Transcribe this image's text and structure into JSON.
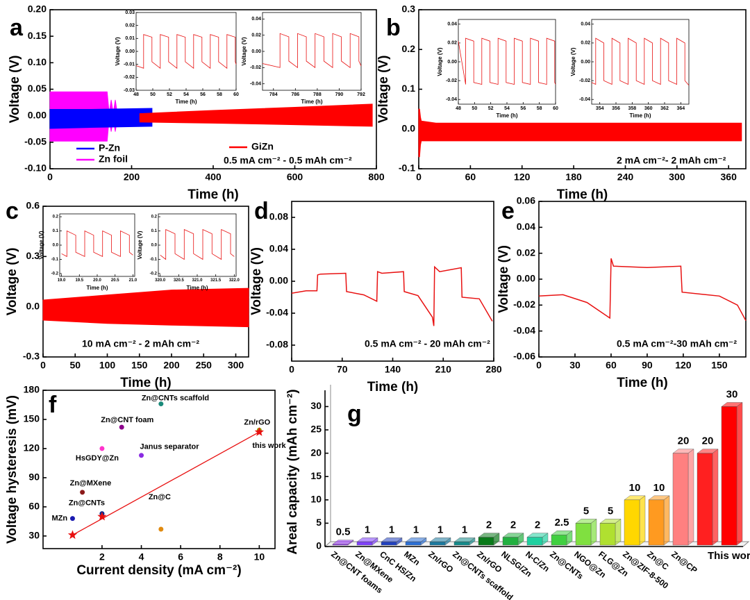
{
  "chart_data": [
    {
      "type": "line",
      "label": "a",
      "xlabel": "Time (h)",
      "ylabel": "Voltage (V)",
      "note": "0.5 mA cm⁻² - 0.5 mAh cm⁻²",
      "legend": true,
      "xlim": [
        0,
        800
      ],
      "xticks": [
        0,
        200,
        400,
        600,
        800
      ],
      "ylim": [
        -0.1,
        0.2
      ],
      "yticks": [
        {
          "value": -0.1,
          "label": "-0.10"
        },
        {
          "value": -0.05,
          "label": "-0.05"
        },
        {
          "value": 0,
          "label": "0.00"
        },
        {
          "value": 0.05,
          "label": "0.05"
        },
        {
          "value": 0.1,
          "label": "0.10"
        },
        {
          "value": 0.15,
          "label": "0.15"
        },
        {
          "value": 0.2,
          "label": "0.20"
        }
      ],
      "series": [
        {
          "name": "Zn foil",
          "color": "#ff00ff",
          "x": [
            0,
            140,
            145,
            150,
            155,
            160,
            165
          ],
          "high": [
            0.045,
            0.045,
            0.005,
            0.03,
            0.005,
            0.03,
            0.005
          ],
          "low": [
            -0.048,
            -0.048,
            -0.005,
            -0.03,
            -0.005,
            -0.03,
            -0.005
          ]
        },
        {
          "name": "P-Zn",
          "color": "#0000ff",
          "x": [
            0,
            100,
            250
          ],
          "high": [
            0.012,
            0.012,
            0.014
          ],
          "low": [
            -0.024,
            -0.022,
            -0.02
          ]
        },
        {
          "name": "GiZn",
          "color": "#ff0000",
          "x": [
            220,
            400,
            600,
            790
          ],
          "high": [
            0.004,
            0.01,
            0.016,
            0.022
          ],
          "low": [
            -0.012,
            -0.014,
            -0.017,
            -0.02
          ]
        }
      ]
    },
    {
      "type": "line",
      "xlabel": "Time (h)",
      "ylabel": "Voltage (V)",
      "xlim": [
        48,
        60
      ],
      "xticks": [
        48,
        50,
        52,
        54,
        56,
        58,
        60
      ],
      "ylim": [
        -0.03,
        0.03
      ],
      "yticks": [
        -0.03,
        -0.02,
        -0.01,
        {
          "value": 0,
          "label": "0.00"
        },
        0.01,
        0.02,
        0.03
      ],
      "series": [
        {
          "color": "#e81010",
          "x": [
            48,
            48.9,
            48.9,
            49.9,
            49.9,
            50.9,
            50.9,
            51.9,
            51.9,
            52.9,
            52.9,
            53.9,
            53.9,
            54.9,
            54.9,
            55.9,
            55.9,
            56.9,
            56.9,
            57.9,
            57.9,
            58.9,
            58.9,
            59.9,
            59.9,
            60
          ],
          "values": [
            -0.011,
            -0.013,
            0.013,
            0.011,
            -0.008,
            -0.013,
            0.013,
            0.011,
            -0.008,
            -0.013,
            0.013,
            0.011,
            -0.008,
            -0.013,
            0.013,
            0.011,
            -0.008,
            -0.013,
            0.013,
            0.011,
            -0.008,
            -0.013,
            0.013,
            0.011,
            -0.008,
            -0.01
          ]
        }
      ]
    },
    {
      "type": "line",
      "xlabel": "Time (h)",
      "ylabel": "Voltage (V)",
      "xlim": [
        783,
        792
      ],
      "xticks": [
        784,
        786,
        788,
        790,
        792
      ],
      "ylim": [
        -0.048,
        0.048
      ],
      "yticks": [
        -0.04,
        -0.02,
        {
          "value": 0,
          "label": "0.00"
        },
        0.02,
        0.04
      ],
      "series": [
        {
          "color": "#e81010",
          "x": [
            783,
            784.6,
            784.6,
            785.4,
            785.4,
            786.2,
            786.2,
            787,
            787,
            787.8,
            787.8,
            788.6,
            788.6,
            789.4,
            789.4,
            790.2,
            790.2,
            791,
            791,
            791.8,
            791.8,
            792
          ],
          "values": [
            -0.015,
            -0.02,
            0.022,
            0.018,
            -0.012,
            -0.02,
            0.022,
            0.018,
            -0.012,
            -0.02,
            0.022,
            0.018,
            -0.012,
            -0.02,
            0.022,
            0.018,
            -0.012,
            -0.02,
            0.022,
            0.018,
            -0.012,
            -0.018
          ]
        }
      ]
    },
    {
      "type": "line",
      "label": "b",
      "xlabel": "Time (h)",
      "ylabel": "Voltage (V)",
      "note": "2 mA cm⁻²- 2 mAh cm⁻²",
      "xlim": [
        0,
        380
      ],
      "xticks": [
        0,
        60,
        120,
        180,
        240,
        300,
        360
      ],
      "ylim": [
        -0.1,
        0.3
      ],
      "yticks": [
        -0.1,
        {
          "value": 0,
          "label": "0.0"
        },
        0.1,
        0.2,
        0.3
      ],
      "series": [
        {
          "color": "#ff0000",
          "x": [
            0,
            1,
            2,
            3,
            20,
            375
          ],
          "high": [
            0.05,
            0.05,
            0.03,
            0.02,
            0.015,
            0.015
          ],
          "low": [
            -0.07,
            -0.07,
            -0.04,
            -0.03,
            -0.03,
            -0.03
          ]
        }
      ]
    },
    {
      "type": "line",
      "xlabel": "Time (h)",
      "ylabel": "Voltage (V)",
      "xlim": [
        48,
        60
      ],
      "xticks": [
        48,
        50,
        52,
        54,
        56,
        58,
        60
      ],
      "ylim": [
        -0.045,
        0.045
      ],
      "yticks": [
        -0.04,
        -0.02,
        {
          "value": 0,
          "label": "0.00"
        },
        0.02,
        0.04
      ],
      "series": [
        {
          "color": "#e81010",
          "x": [
            48,
            48.9,
            48.9,
            49.9,
            49.9,
            50.9,
            50.9,
            51.9,
            51.9,
            52.9,
            52.9,
            53.9,
            53.9,
            54.9,
            54.9,
            55.9,
            55.9,
            56.9,
            56.9,
            57.9,
            57.9,
            58.9,
            58.9,
            59.9,
            59.9,
            60
          ],
          "values": [
            0.022,
            -0.024,
            0.025,
            0.022,
            -0.022,
            -0.024,
            0.025,
            0.022,
            -0.022,
            -0.024,
            0.025,
            0.022,
            -0.022,
            -0.024,
            0.025,
            0.022,
            -0.022,
            -0.024,
            0.025,
            0.022,
            -0.022,
            -0.024,
            0.025,
            0.022,
            -0.022,
            -0.024
          ]
        }
      ]
    },
    {
      "type": "line",
      "xlabel": "Time (h)",
      "ylabel": "Voltage (V)",
      "xlim": [
        353,
        365
      ],
      "xticks": [
        354,
        356,
        358,
        360,
        362,
        364
      ],
      "ylim": [
        -0.045,
        0.045
      ],
      "yticks": [
        -0.04,
        -0.02,
        {
          "value": 0,
          "label": "0.00"
        },
        0.02,
        0.04
      ],
      "series": [
        {
          "color": "#e81010",
          "x": [
            353,
            353.5,
            353.5,
            354.5,
            354.5,
            355.5,
            355.5,
            356.5,
            356.5,
            357.5,
            357.5,
            358.5,
            358.5,
            359.5,
            359.5,
            360.5,
            360.5,
            361.5,
            361.5,
            362.5,
            362.5,
            363.5,
            363.5,
            364.5,
            364.5,
            365
          ],
          "values": [
            -0.022,
            -0.024,
            0.025,
            0.02,
            -0.02,
            -0.024,
            0.025,
            0.02,
            -0.02,
            -0.024,
            0.025,
            0.02,
            -0.02,
            -0.024,
            0.025,
            0.02,
            -0.02,
            -0.024,
            0.025,
            0.02,
            -0.02,
            -0.024,
            0.025,
            0.02,
            -0.02,
            -0.025
          ]
        }
      ]
    },
    {
      "type": "line",
      "label": "c",
      "xlabel": "Time (h)",
      "ylabel": "Voltage (V)",
      "note": "10 mA cm⁻² - 2 mAh cm⁻²",
      "xlim": [
        0,
        320
      ],
      "xticks": [
        0,
        50,
        100,
        150,
        200,
        250,
        300
      ],
      "ylim": [
        -0.3,
        0.6
      ],
      "yticks": [
        -0.3,
        {
          "value": 0,
          "label": "0.0"
        },
        0.3,
        0.6
      ],
      "series": [
        {
          "color": "#ff0000",
          "x": [
            0,
            100,
            200,
            320
          ],
          "high": [
            0.04,
            0.07,
            0.1,
            0.11
          ],
          "low": [
            -0.08,
            -0.1,
            -0.11,
            -0.12
          ]
        }
      ]
    },
    {
      "type": "line",
      "xlabel": "Time (h)",
      "ylabel": "Voltage (V)",
      "xlim": [
        18.95,
        21.05
      ],
      "xticks": [
        {
          "value": 19,
          "label": "19.0"
        },
        19.5,
        {
          "value": 20,
          "label": "20.0"
        },
        20.5,
        {
          "value": 21,
          "label": "21.0"
        }
      ],
      "ylim": [
        -0.22,
        0.22
      ],
      "yticks": [
        -0.2,
        -0.1,
        {
          "value": 0,
          "label": "0.0"
        },
        0.1,
        0.2
      ],
      "series": [
        {
          "color": "#e81010",
          "x": [
            19,
            19.15,
            19.15,
            19.4,
            19.4,
            19.65,
            19.65,
            19.9,
            19.9,
            20.15,
            20.15,
            20.4,
            20.4,
            20.65,
            20.65,
            20.9,
            20.9,
            21
          ],
          "values": [
            -0.06,
            -0.08,
            0.1,
            0.07,
            -0.05,
            -0.08,
            0.1,
            0.07,
            -0.05,
            -0.08,
            0.1,
            0.07,
            -0.05,
            -0.08,
            0.1,
            0.07,
            -0.05,
            -0.07
          ]
        }
      ]
    },
    {
      "type": "line",
      "xlabel": "Time (h)",
      "ylabel": "Voltage (V)",
      "xlim": [
        319.95,
        322.05
      ],
      "xticks": [
        {
          "value": 320,
          "label": "320.0"
        },
        320.5,
        {
          "value": 321,
          "label": "321.0"
        },
        321.5,
        {
          "value": 322,
          "label": "322.0"
        }
      ],
      "ylim": [
        -0.22,
        0.22
      ],
      "yticks": [
        -0.2,
        -0.1,
        {
          "value": 0,
          "label": "0.0"
        },
        0.1,
        0.2
      ],
      "series": [
        {
          "color": "#e81010",
          "x": [
            320,
            320.15,
            320.15,
            320.4,
            320.4,
            320.65,
            320.65,
            320.9,
            320.9,
            321.15,
            321.15,
            321.4,
            321.4,
            321.65,
            321.65,
            321.9,
            321.9,
            322
          ],
          "values": [
            -0.07,
            -0.1,
            0.11,
            0.08,
            -0.06,
            -0.1,
            0.11,
            0.08,
            -0.06,
            -0.1,
            0.11,
            0.08,
            -0.06,
            -0.1,
            0.11,
            0.08,
            -0.06,
            -0.08
          ]
        }
      ]
    },
    {
      "type": "line",
      "label": "d",
      "xlabel": "Time (h)",
      "ylabel": "Voltage (V)",
      "note": "0.5 mA cm⁻² - 20 mAh cm⁻²",
      "xlim": [
        0,
        280
      ],
      "xticks": [
        0,
        70,
        140,
        210,
        280
      ],
      "ylim": [
        -0.1,
        0.1
      ],
      "yticks": [
        -0.08,
        -0.04,
        {
          "value": 0,
          "label": "0.00"
        },
        0.04,
        0.08
      ],
      "series": [
        {
          "color": "#e81010",
          "x": [
            0,
            20,
            35,
            36,
            40,
            75,
            76,
            100,
            118,
            119,
            125,
            155,
            156,
            175,
            195,
            197,
            198,
            205,
            235,
            236,
            260,
            278
          ],
          "values": [
            -0.015,
            -0.012,
            -0.012,
            0.008,
            0.009,
            0.01,
            -0.013,
            -0.017,
            -0.025,
            0.012,
            0.01,
            0.012,
            -0.013,
            -0.018,
            -0.045,
            -0.056,
            0.018,
            0.012,
            0.017,
            -0.02,
            -0.022,
            -0.05
          ]
        }
      ]
    },
    {
      "type": "line",
      "label": "e",
      "xlabel": "Time (h)",
      "ylabel": "Voltage (V)",
      "note": "0.5 mA cm⁻²-30 mAh cm⁻²",
      "xlim": [
        0,
        172
      ],
      "xticks": [
        0,
        30,
        60,
        90,
        120,
        150
      ],
      "ylim": [
        -0.06,
        0.06
      ],
      "yticks": [
        -0.06,
        -0.04,
        -0.02,
        {
          "value": 0,
          "label": "0.00"
        },
        0.02,
        0.04,
        0.06
      ],
      "series": [
        {
          "color": "#e81010",
          "x": [
            0,
            20,
            40,
            59,
            60,
            62,
            90,
            118,
            119,
            150,
            165,
            172
          ],
          "values": [
            -0.013,
            -0.012,
            -0.018,
            -0.03,
            0.016,
            0.01,
            0.009,
            0.01,
            -0.01,
            -0.013,
            -0.02,
            -0.032
          ]
        }
      ]
    },
    {
      "type": "scatter",
      "label": "f",
      "xlabel": "Current density (mA cm⁻²)",
      "ylabel": "Voltage hysteresis (mV)",
      "xlim": [
        -1,
        10.8
      ],
      "xticks": [
        2,
        4,
        6,
        8,
        10
      ],
      "ylim": [
        17,
        180
      ],
      "yticks": [
        30,
        60,
        90,
        120,
        150,
        180
      ],
      "series": [
        {
          "name": "MZn",
          "color": "#1a1ab0",
          "x": [
            0.5
          ],
          "values": [
            48
          ]
        },
        {
          "name": "Zn@CNTs",
          "color": "#0a2a90",
          "x": [
            2
          ],
          "values": [
            53
          ]
        },
        {
          "name": "Zn@MXene",
          "color": "#8b1a1a",
          "x": [
            1
          ],
          "values": [
            75
          ]
        },
        {
          "name": "HsGDY@Zn",
          "color": "#ff33cc",
          "x": [
            2
          ],
          "values": [
            120
          ]
        },
        {
          "name": "Zn@CNT foam",
          "color": "#8b008b",
          "x": [
            3
          ],
          "values": [
            142
          ]
        },
        {
          "name": "Janus separator",
          "color": "#8a2be2",
          "x": [
            4
          ],
          "values": [
            113
          ]
        },
        {
          "name": "Zn@CNTs scaffold",
          "color": "#1a8a7a",
          "x": [
            5
          ],
          "values": [
            166
          ]
        },
        {
          "name": "Zn/rGO",
          "color": "#9a9a00",
          "x": [
            10
          ],
          "values": [
            139
          ]
        },
        {
          "name": "Zn@C",
          "color": "#e08a10",
          "x": [
            5
          ],
          "values": [
            37
          ]
        },
        {
          "name": "this work",
          "color": "#e81010",
          "marker": "star",
          "x": [
            0.5,
            2,
            10
          ],
          "values": [
            31,
            50,
            137
          ]
        }
      ],
      "fit": {
        "color": "#e81010",
        "x": [
          0.5,
          10
        ],
        "values": [
          31,
          137
        ]
      }
    },
    {
      "type": "bar",
      "label": "g",
      "ylabel": "Areal capacity (mAh cm⁻²)",
      "ylim": [
        0,
        32
      ],
      "yticks": [
        0,
        5,
        10,
        15,
        20,
        25,
        30
      ],
      "categories": [
        "Zn@CNT foams",
        "Zn@MXene",
        "CnC HS/Zn",
        "MZn",
        "Zn/rGO",
        "Zn@CNTs scaffold",
        "Zn/rGO",
        "NLSG/Zn",
        "N-C/Zn",
        "Zn@CNTs",
        "NGO@Zn",
        "FLG@Zn",
        "Zn@ZIF-8-500",
        "Zn@C",
        "Zn@CP",
        null,
        "This work"
      ],
      "values": [
        0.5,
        1,
        1,
        1,
        1,
        1,
        2,
        2,
        2,
        2.5,
        5,
        5,
        10,
        10,
        20,
        20,
        30
      ],
      "colors": [
        "#9b30ff",
        "#8040ff",
        "#2040c0",
        "#2a6fd6",
        "#1a7aa0",
        "#138a8a",
        "#0a7a1a",
        "#22b040",
        "#20d0a0",
        "#40d040",
        "#80e040",
        "#b0e030",
        "#ffd700",
        "#ff9a20",
        "#ff8080",
        "#ff2020",
        "#ff0000"
      ]
    }
  ]
}
